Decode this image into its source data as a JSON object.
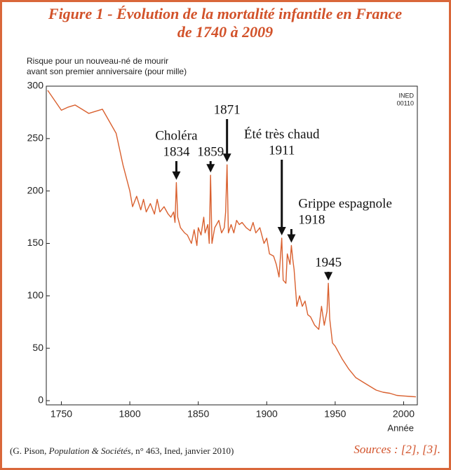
{
  "chart_data": {
    "type": "line",
    "title": [
      "Figure 1 - Évolution de la mortalité infantile en France",
      "de 1740 à 2009"
    ],
    "y_label": [
      "Risque pour un nouveau-né de mourir",
      "avant son premier anniversaire (pour mille)"
    ],
    "x_label": "Année",
    "badge": [
      "INED",
      "00110"
    ],
    "x": [
      1740,
      1750,
      1755,
      1760,
      1765,
      1770,
      1780,
      1790,
      1795,
      1800,
      1802,
      1805,
      1808,
      1810,
      1812,
      1815,
      1818,
      1820,
      1822,
      1825,
      1828,
      1830,
      1832,
      1833,
      1834,
      1835,
      1837,
      1840,
      1842,
      1845,
      1847,
      1849,
      1850,
      1852,
      1854,
      1855,
      1857,
      1858,
      1859,
      1860,
      1862,
      1865,
      1867,
      1869,
      1870,
      1871,
      1872,
      1874,
      1876,
      1878,
      1880,
      1882,
      1885,
      1888,
      1890,
      1892,
      1895,
      1898,
      1900,
      1902,
      1905,
      1907,
      1909,
      1911,
      1912,
      1914,
      1915,
      1917,
      1918,
      1919,
      1920,
      1922,
      1924,
      1926,
      1928,
      1930,
      1932,
      1935,
      1938,
      1940,
      1942,
      1944,
      1945,
      1946,
      1948,
      1950,
      1955,
      1960,
      1965,
      1970,
      1975,
      1980,
      1985,
      1990,
      1995,
      2000,
      2005,
      2009
    ],
    "series": [
      {
        "name": "Mortalité infantile",
        "color": "#d9602f",
        "values": [
          296,
          277,
          280,
          282,
          278,
          274,
          278,
          255,
          225,
          200,
          185,
          195,
          182,
          192,
          180,
          188,
          178,
          192,
          180,
          185,
          178,
          175,
          180,
          170,
          208,
          175,
          165,
          160,
          158,
          150,
          163,
          148,
          165,
          158,
          175,
          160,
          168,
          150,
          215,
          150,
          165,
          172,
          160,
          165,
          180,
          225,
          160,
          168,
          160,
          172,
          168,
          170,
          165,
          162,
          170,
          160,
          165,
          150,
          155,
          140,
          138,
          130,
          118,
          155,
          115,
          112,
          140,
          130,
          148,
          135,
          125,
          90,
          100,
          90,
          95,
          82,
          80,
          72,
          68,
          90,
          72,
          85,
          112,
          78,
          55,
          52,
          40,
          30,
          22,
          18,
          14,
          10,
          8,
          7,
          5,
          4.5,
          4,
          3.6
        ]
      }
    ],
    "xlim": [
      1739,
      2010
    ],
    "ylim": [
      -4,
      300
    ],
    "xticks": [
      1750,
      1800,
      1850,
      1900,
      1950,
      2000
    ],
    "yticks": [
      0,
      50,
      100,
      150,
      200,
      250,
      300
    ],
    "annotations": [
      {
        "lines": [
          "Choléra",
          "1834"
        ],
        "x": 1834
      },
      {
        "lines": [
          "1859"
        ],
        "x": 1859
      },
      {
        "lines": [
          "1871"
        ],
        "x": 1871
      },
      {
        "lines": [
          "Été très chaud",
          "1911"
        ],
        "x": 1911
      },
      {
        "lines": [
          "Grippe espagnole",
          "1918"
        ],
        "x": 1918
      },
      {
        "lines": [
          "1945"
        ],
        "x": 1945
      }
    ],
    "source_note": [
      "(G. Pison, ",
      "Population & Sociétés",
      ", n° 463, Ined, janvier 2010)"
    ],
    "sources": "Sources : [2], [3]."
  }
}
